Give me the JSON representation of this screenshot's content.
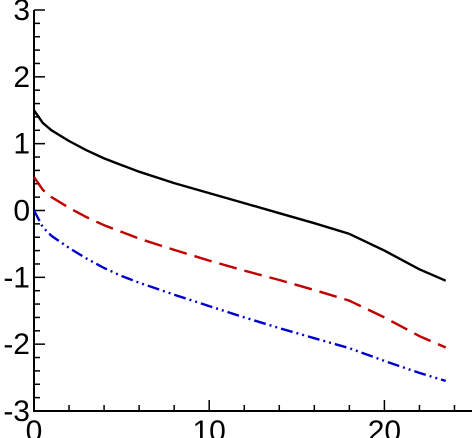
{
  "chart_data": {
    "type": "line",
    "title": "",
    "xlabel": "",
    "ylabel": "",
    "xlim": [
      0,
      25
    ],
    "ylim": [
      -3,
      3
    ],
    "x_ticks": [
      0,
      10,
      20
    ],
    "x_tick_labels": [
      "0",
      "10",
      "20"
    ],
    "y_ticks": [
      3,
      2,
      1,
      0,
      -1,
      -2,
      -3
    ],
    "y_tick_labels": [
      "3",
      "2",
      "1",
      "0",
      "-1",
      "-2",
      "-3"
    ],
    "grid": false,
    "legend": "none",
    "x": [
      0,
      0.5,
      1,
      2,
      3,
      4,
      5,
      6,
      8,
      10,
      12,
      14,
      16,
      18,
      20,
      22,
      23.5
    ],
    "series": [
      {
        "color": "#000000",
        "dash": "solid",
        "values": [
          1.5,
          1.31,
          1.2,
          1.04,
          0.9,
          0.78,
          0.68,
          0.58,
          0.41,
          0.26,
          0.11,
          -0.04,
          -0.19,
          -0.35,
          -0.6,
          -0.88,
          -1.05
        ]
      },
      {
        "color": "#c00000",
        "dash": "dashed",
        "values": [
          0.5,
          0.31,
          0.2,
          0.04,
          -0.1,
          -0.22,
          -0.32,
          -0.42,
          -0.59,
          -0.75,
          -0.9,
          -1.04,
          -1.19,
          -1.35,
          -1.6,
          -1.88,
          -2.05
        ]
      },
      {
        "color": "#0000cc",
        "dash": "dash-dot-dot",
        "values": [
          0.0,
          -0.25,
          -0.38,
          -0.56,
          -0.72,
          -0.86,
          -0.98,
          -1.08,
          -1.26,
          -1.43,
          -1.6,
          -1.76,
          -1.91,
          -2.06,
          -2.25,
          -2.43,
          -2.55
        ]
      }
    ]
  }
}
